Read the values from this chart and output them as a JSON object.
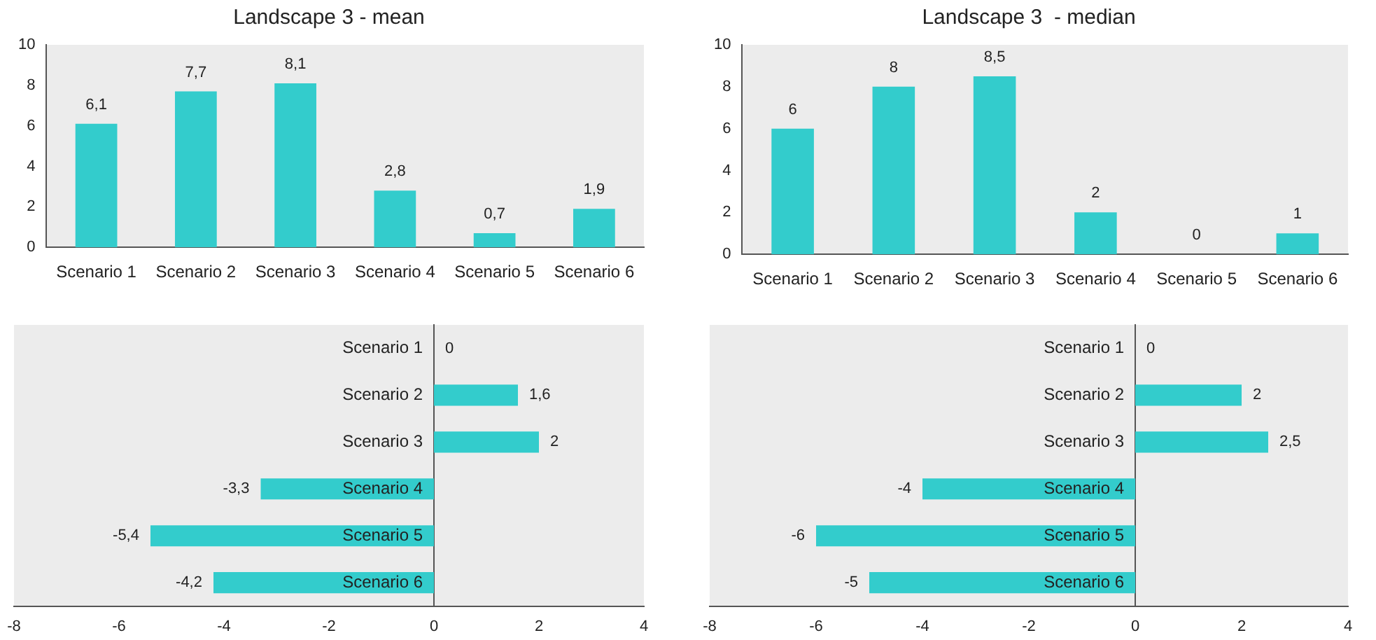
{
  "chart_data": [
    {
      "type": "bar",
      "title": "Landscape 3 - mean",
      "categories": [
        "Scenario 1",
        "Scenario 2",
        "Scenario 3",
        "Scenario 4",
        "Scenario 5",
        "Scenario 6"
      ],
      "values": [
        6.1,
        7.7,
        8.1,
        2.8,
        0.7,
        1.9
      ],
      "value_labels": [
        "6,1",
        "7,7",
        "8,1",
        "2,8",
        "0,7",
        "1,9"
      ],
      "color": "#33cccc",
      "ylim": [
        0,
        10
      ],
      "yticks": [
        0,
        2,
        4,
        6,
        8,
        10
      ],
      "grid": false
    },
    {
      "type": "bar",
      "title": "Landscape 3  - median",
      "categories": [
        "Scenario 1",
        "Scenario 2",
        "Scenario 3",
        "Scenario 4",
        "Scenario 5",
        "Scenario 6"
      ],
      "values": [
        6,
        8,
        8.5,
        2,
        0,
        1
      ],
      "value_labels": [
        "6",
        "8",
        "8,5",
        "2",
        "0",
        "1"
      ],
      "color": "#33cccc",
      "ylim": [
        0,
        10
      ],
      "yticks": [
        0,
        2,
        4,
        6,
        8,
        10
      ],
      "grid": false
    },
    {
      "type": "bar",
      "orientation": "horizontal",
      "categories": [
        "Scenario 1",
        "Scenario 2",
        "Scenario 3",
        "Scenario 4",
        "Scenario 5",
        "Scenario 6"
      ],
      "values": [
        0,
        1.6,
        2,
        -3.3,
        -5.4,
        -4.2
      ],
      "value_labels": [
        "0",
        "1,6",
        "2",
        "-3,3",
        "-5,4",
        "-4,2"
      ],
      "color": "#33cccc",
      "xlim": [
        -8,
        4
      ],
      "xticks": [
        -8,
        -6,
        -4,
        -2,
        0,
        2,
        4
      ],
      "grid": false
    },
    {
      "type": "bar",
      "orientation": "horizontal",
      "categories": [
        "Scenario 1",
        "Scenario 2",
        "Scenario 3",
        "Scenario 4",
        "Scenario 5",
        "Scenario 6"
      ],
      "values": [
        0,
        2,
        2.5,
        -4,
        -6,
        -5
      ],
      "value_labels": [
        "0",
        "2",
        "2,5",
        "-4",
        "-6",
        "-5"
      ],
      "color": "#33cccc",
      "xlim": [
        -8,
        4
      ],
      "xticks": [
        -8,
        -6,
        -4,
        -2,
        0,
        2,
        4
      ],
      "grid": false
    }
  ]
}
